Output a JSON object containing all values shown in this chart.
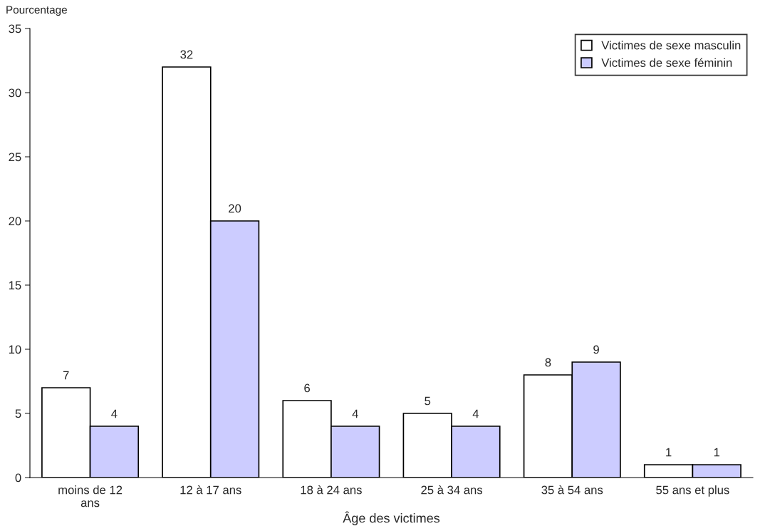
{
  "chart_data": {
    "type": "bar",
    "ylabel": "Pourcentage",
    "xlabel": "Âge des victimes",
    "categories": [
      "moins de 12\nans",
      "12 à 17 ans",
      "18 à 24 ans",
      "25 à 34 ans",
      "35 à 54 ans",
      "55 ans et plus"
    ],
    "series": [
      {
        "name": "Victimes de sexe masculin",
        "color": "#ffffff",
        "values": [
          7,
          32,
          6,
          5,
          8,
          1
        ]
      },
      {
        "name": "Victimes de sexe féminin",
        "color": "#ccccff",
        "values": [
          4,
          20,
          4,
          4,
          9,
          1
        ]
      }
    ],
    "ylim": [
      0,
      35
    ],
    "yticks": [
      0,
      5,
      10,
      15,
      20,
      25,
      30,
      35
    ],
    "data_labels": true,
    "grid": false,
    "legend": "top right"
  }
}
